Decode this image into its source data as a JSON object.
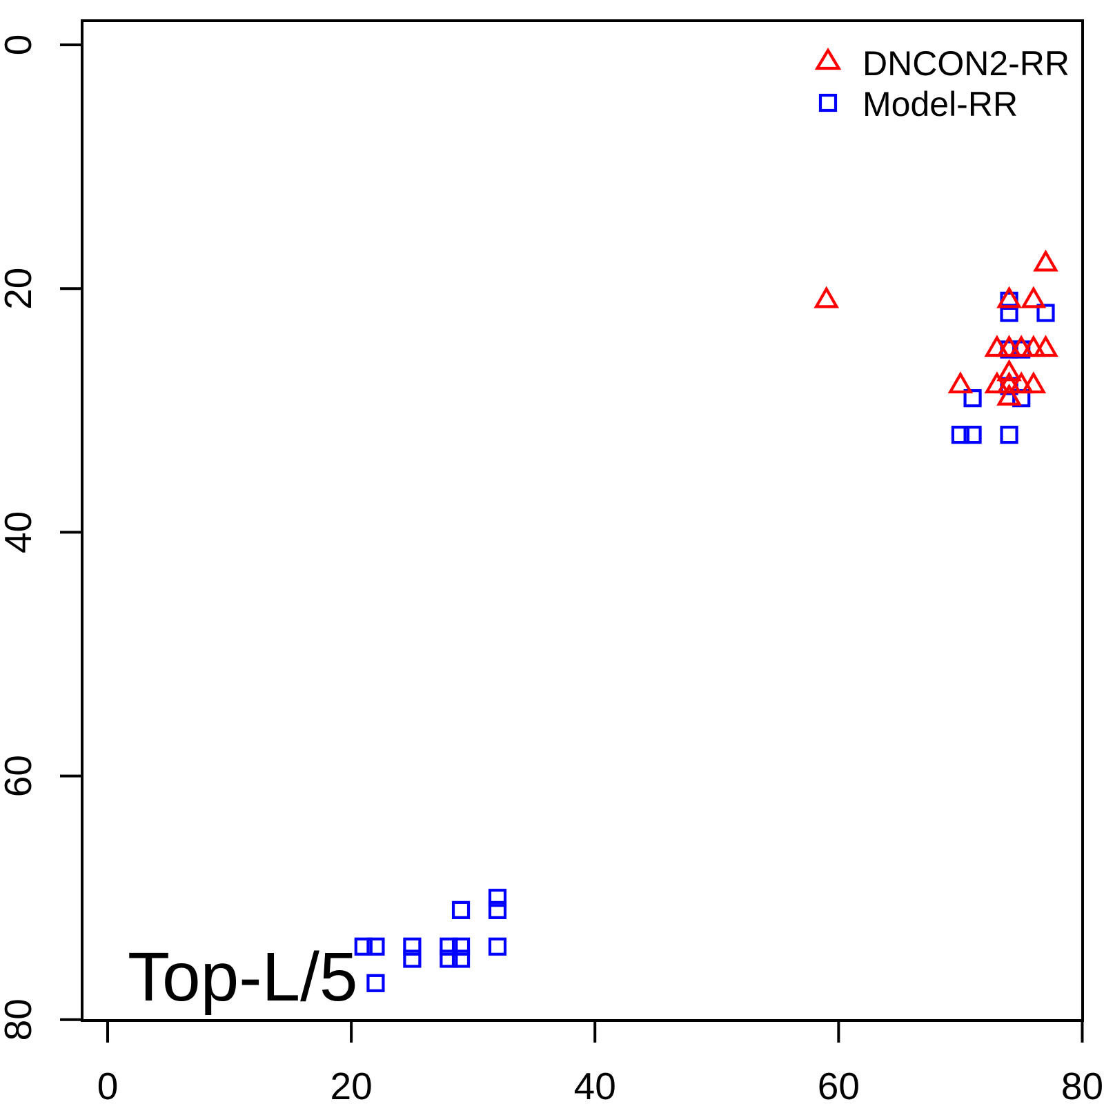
{
  "figure": {
    "background": "#FFFFFF",
    "axis_color": "#000000"
  },
  "legend": {
    "position": "top-right",
    "items": [
      {
        "label": "DNCON2-RR",
        "marker": "triangle-icon",
        "color": "#FF0000"
      },
      {
        "label": "Model-RR",
        "marker": "square-icon",
        "color": "#0000FF"
      }
    ]
  },
  "chart_data": {
    "type": "scatter",
    "title": "",
    "xlabel": "",
    "ylabel": "",
    "annotation": "Top-L/5",
    "xlim": [
      0,
      80
    ],
    "ylim": [
      80,
      0
    ],
    "y_axis_reversed": true,
    "grid": false,
    "x_ticks": [
      0,
      20,
      40,
      60,
      80
    ],
    "y_ticks": [
      0,
      20,
      40,
      60,
      80
    ],
    "legend_position": "top-right",
    "series": [
      {
        "name": "DNCON2-RR",
        "marker": "triangle",
        "color": "#FF0000",
        "points": [
          [
            77,
            18
          ],
          [
            59,
            21
          ],
          [
            74,
            21
          ],
          [
            76,
            21
          ],
          [
            73,
            25
          ],
          [
            74,
            25
          ],
          [
            75,
            25
          ],
          [
            76,
            25
          ],
          [
            77,
            25
          ],
          [
            74,
            27
          ],
          [
            70,
            28
          ],
          [
            73,
            28
          ],
          [
            74,
            28
          ],
          [
            75,
            28
          ],
          [
            76,
            28
          ],
          [
            74,
            29
          ]
        ]
      },
      {
        "name": "Model-RR",
        "marker": "square",
        "color": "#0000FF",
        "points": [
          [
            74,
            21
          ],
          [
            74,
            22
          ],
          [
            77,
            22
          ],
          [
            74,
            25
          ],
          [
            75,
            25
          ],
          [
            74,
            28
          ],
          [
            71,
            29
          ],
          [
            75,
            29
          ],
          [
            70,
            32
          ],
          [
            71,
            32
          ],
          [
            74,
            32
          ],
          [
            32,
            70
          ],
          [
            29,
            71
          ],
          [
            32,
            71
          ],
          [
            21,
            74
          ],
          [
            22,
            74
          ],
          [
            25,
            74
          ],
          [
            28,
            74
          ],
          [
            29,
            74
          ],
          [
            32,
            74
          ],
          [
            25,
            75
          ],
          [
            28,
            75
          ],
          [
            29,
            75
          ],
          [
            22,
            77
          ]
        ]
      }
    ]
  }
}
